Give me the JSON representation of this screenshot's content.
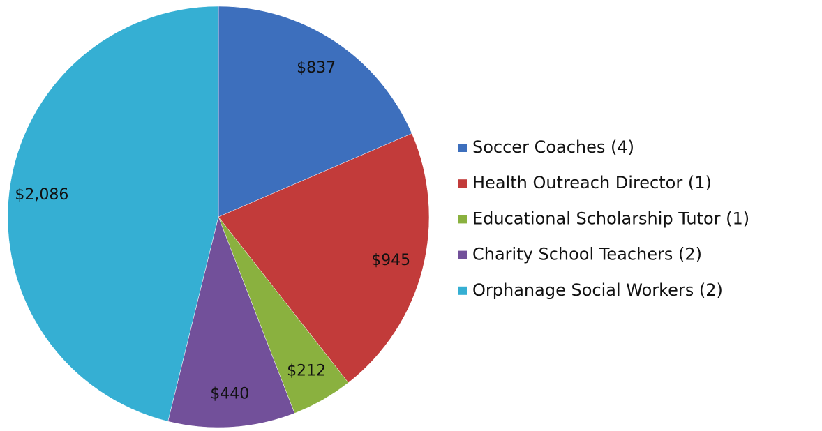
{
  "chart_data": {
    "type": "pie",
    "categories": [
      "Soccer Coaches (4)",
      "Health Outreach Director (1)",
      "Educational Scholarship Tutor (1)",
      "Charity School Teachers (2)",
      "Orphanage Social Workers (2)"
    ],
    "values": [
      837,
      945,
      212,
      440,
      2086
    ],
    "value_labels": [
      "$837",
      "$945",
      "$212",
      "$440",
      "$2,086"
    ],
    "colors": [
      "#3d6fbd",
      "#c23b3a",
      "#8ab13f",
      "#72509a",
      "#35afd3"
    ],
    "legend": "right"
  }
}
